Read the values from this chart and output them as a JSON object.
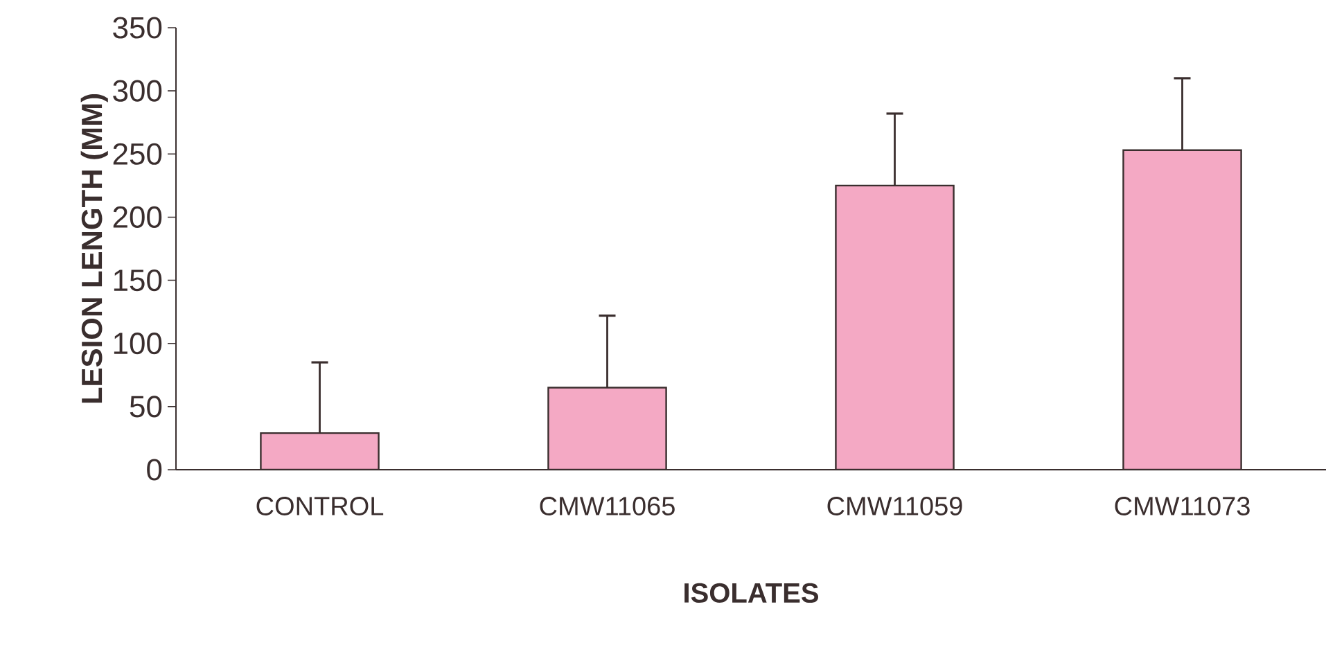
{
  "chart_data": {
    "type": "bar",
    "xlabel": "ISOLATES",
    "ylabel": "LESION LENGTH (MM)",
    "categories": [
      "CONTROL",
      "CMW11065",
      "CMW11059",
      "CMW11073"
    ],
    "values": [
      29,
      65,
      225,
      253
    ],
    "errors": [
      [
        29,
        85
      ],
      [
        65,
        122
      ],
      [
        225,
        282
      ],
      [
        253,
        310
      ]
    ],
    "color": "#f4a9c4",
    "ylim": [
      0,
      350
    ],
    "yticks": [
      0,
      50,
      100,
      150,
      200,
      250,
      300,
      350
    ]
  }
}
